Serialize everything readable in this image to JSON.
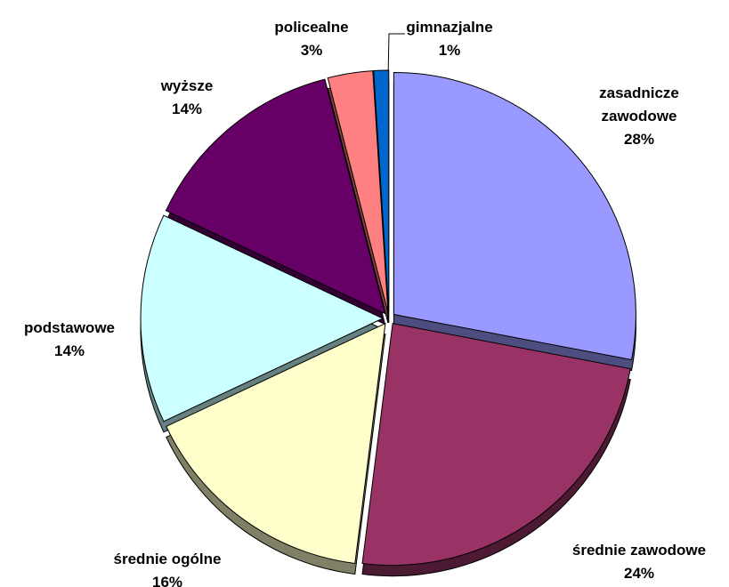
{
  "chart_data": {
    "type": "pie",
    "categories": [
      "zasadnicze zawodowe",
      "średnie zawodowe",
      "średnie ogólne",
      "podstawowe",
      "wyższe",
      "policealne",
      "gimnazjalne"
    ],
    "values": [
      28,
      24,
      16,
      14,
      14,
      3,
      1
    ],
    "value_labels": [
      "28%",
      "24%",
      "16%",
      "14%",
      "14%",
      "3%",
      "1%"
    ],
    "colors": [
      "#9999ff",
      "#993366",
      "#ffffcc",
      "#ccffff",
      "#660066",
      "#ff8080",
      "#0066cc"
    ]
  }
}
